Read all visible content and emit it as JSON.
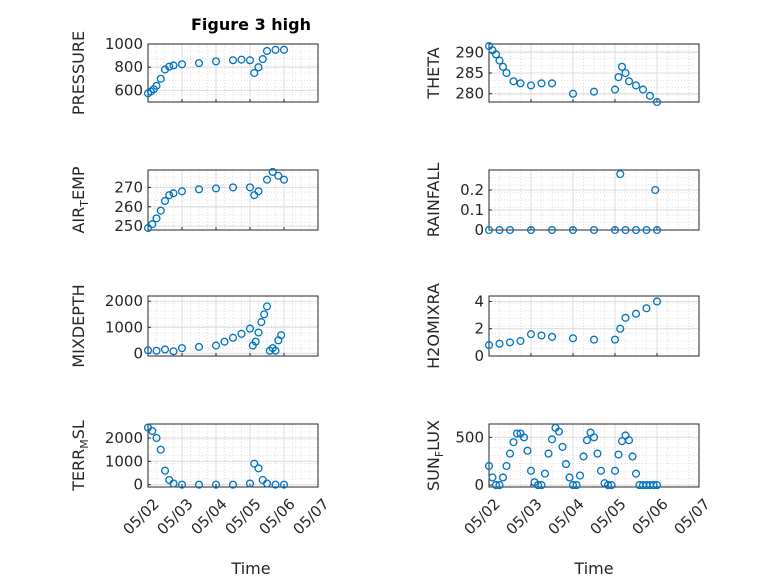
{
  "figure": {
    "title": "Figure 3 high",
    "xlabel": "Time",
    "date_ticks": [
      "05/02",
      "05/03",
      "05/04",
      "05/05",
      "05/06",
      "05/07"
    ],
    "marker_color": "#0072BD"
  },
  "chart_data": [
    {
      "type": "scatter",
      "title": "Figure 3 high",
      "ylabel": "PRESSURE",
      "ylim": [
        500,
        1000
      ],
      "yticks": [
        "600",
        "800",
        "1000"
      ],
      "x": [
        "05/02 00:00",
        "05/02 02:00",
        "05/02 04:00",
        "05/02 06:00",
        "05/02 09:00",
        "05/02 12:00",
        "05/02 15:00",
        "05/02 18:00",
        "05/03 00:00",
        "05/03 12:00",
        "05/04 00:00",
        "05/04 12:00",
        "05/04 18:00",
        "05/05 00:00",
        "05/05 03:00",
        "05/05 06:00",
        "05/05 09:00",
        "05/05 12:00",
        "05/05 18:00",
        "05/06 00:00"
      ],
      "y": [
        575,
        590,
        610,
        640,
        700,
        780,
        805,
        815,
        825,
        835,
        850,
        860,
        865,
        860,
        750,
        800,
        870,
        940,
        950,
        950
      ]
    },
    {
      "type": "scatter",
      "ylabel": "THETA",
      "ylim": [
        278,
        292
      ],
      "yticks": [
        "280",
        "285",
        "290"
      ],
      "x": [
        "05/02 00:00",
        "05/02 02:00",
        "05/02 04:00",
        "05/02 06:00",
        "05/02 08:00",
        "05/02 10:00",
        "05/02 14:00",
        "05/02 18:00",
        "05/03 00:00",
        "05/03 06:00",
        "05/03 12:00",
        "05/04 00:00",
        "05/04 12:00",
        "05/05 00:00",
        "05/05 02:00",
        "05/05 04:00",
        "05/05 06:00",
        "05/05 08:00",
        "05/05 12:00",
        "05/05 16:00",
        "05/05 20:00",
        "05/06 00:00"
      ],
      "y": [
        291.5,
        290.5,
        289.5,
        288,
        286.5,
        285,
        283,
        282.5,
        282,
        282.5,
        282.5,
        280,
        280.5,
        281,
        284,
        286.5,
        285,
        283,
        282,
        281,
        279.5,
        278
      ]
    },
    {
      "type": "scatter",
      "ylabel": "AIR_TEMP",
      "ylim": [
        248,
        279
      ],
      "yticks": [
        "250",
        "260",
        "270"
      ],
      "x": [
        "05/02 00:00",
        "05/02 03:00",
        "05/02 06:00",
        "05/02 09:00",
        "05/02 12:00",
        "05/02 15:00",
        "05/02 18:00",
        "05/03 00:00",
        "05/03 12:00",
        "05/04 00:00",
        "05/04 12:00",
        "05/05 00:00",
        "05/05 03:00",
        "05/05 06:00",
        "05/05 12:00",
        "05/05 16:00",
        "05/05 20:00",
        "05/06 00:00"
      ],
      "y": [
        249,
        251,
        254,
        258,
        263,
        266,
        267,
        268,
        269,
        269.5,
        270,
        270,
        266,
        268,
        274,
        278,
        276,
        274
      ]
    },
    {
      "type": "scatter",
      "ylabel": "RAINFALL",
      "ylim": [
        0,
        0.3
      ],
      "yticks": [
        "0",
        "0.1",
        "0.2"
      ],
      "x": [
        "05/02 00:00",
        "05/02 06:00",
        "05/02 12:00",
        "05/03 00:00",
        "05/03 12:00",
        "05/04 00:00",
        "05/04 12:00",
        "05/05 00:00",
        "05/05 03:00",
        "05/05 06:00",
        "05/05 12:00",
        "05/05 18:00",
        "05/05 23:00",
        "05/06 00:00"
      ],
      "y": [
        0,
        0,
        0,
        0,
        0,
        0,
        0,
        0,
        0.28,
        0,
        0,
        0,
        0.2,
        0
      ]
    },
    {
      "type": "scatter",
      "ylabel": "MIXDEPTH",
      "ylim": [
        -100,
        2200
      ],
      "yticks": [
        "0",
        "1000",
        "2000"
      ],
      "x": [
        "05/02 00:00",
        "05/02 06:00",
        "05/02 12:00",
        "05/02 18:00",
        "05/03 00:00",
        "05/03 12:00",
        "05/04 00:00",
        "05/04 06:00",
        "05/04 12:00",
        "05/04 18:00",
        "05/05 00:00",
        "05/05 02:00",
        "05/05 04:00",
        "05/05 06:00",
        "05/05 08:00",
        "05/05 10:00",
        "05/05 12:00",
        "05/05 14:00",
        "05/05 16:00",
        "05/05 18:00",
        "05/05 20:00",
        "05/05 22:00"
      ],
      "y": [
        120,
        100,
        150,
        80,
        200,
        250,
        300,
        450,
        600,
        750,
        950,
        300,
        450,
        800,
        1200,
        1500,
        1800,
        100,
        200,
        100,
        500,
        700
      ]
    },
    {
      "type": "scatter",
      "ylabel": "H2OMIXRA",
      "ylim": [
        0,
        4.4
      ],
      "yticks": [
        "0",
        "2",
        "4"
      ],
      "x": [
        "05/02 00:00",
        "05/02 06:00",
        "05/02 12:00",
        "05/02 18:00",
        "05/03 00:00",
        "05/03 06:00",
        "05/03 12:00",
        "05/04 00:00",
        "05/04 12:00",
        "05/05 00:00",
        "05/05 03:00",
        "05/05 06:00",
        "05/05 12:00",
        "05/05 18:00",
        "05/06 00:00"
      ],
      "y": [
        0.8,
        0.9,
        1.0,
        1.1,
        1.6,
        1.5,
        1.4,
        1.3,
        1.2,
        1.2,
        2.0,
        2.8,
        3.1,
        3.5,
        4.0
      ]
    },
    {
      "type": "scatter",
      "ylabel": "TERR_MSL",
      "ylim": [
        -100,
        2600
      ],
      "yticks": [
        "0",
        "1000",
        "2000"
      ],
      "x": [
        "05/02 00:00",
        "05/02 03:00",
        "05/02 06:00",
        "05/02 09:00",
        "05/02 12:00",
        "05/02 15:00",
        "05/02 18:00",
        "05/03 00:00",
        "05/03 12:00",
        "05/04 00:00",
        "05/04 12:00",
        "05/05 00:00",
        "05/05 03:00",
        "05/05 06:00",
        "05/05 09:00",
        "05/05 12:00",
        "05/05 18:00",
        "05/06 00:00"
      ],
      "y": [
        2450,
        2300,
        2000,
        1500,
        600,
        200,
        50,
        0,
        0,
        0,
        0,
        50,
        900,
        700,
        200,
        50,
        0,
        0
      ]
    },
    {
      "type": "scatter",
      "ylabel": "SUN_FLUX",
      "ylim": [
        -20,
        640
      ],
      "yticks": [
        "0",
        "500"
      ],
      "x": [
        "05/02 00:00",
        "05/02 02:00",
        "05/02 04:00",
        "05/02 06:00",
        "05/02 08:00",
        "05/02 10:00",
        "05/02 12:00",
        "05/02 14:00",
        "05/02 16:00",
        "05/02 18:00",
        "05/02 20:00",
        "05/02 22:00",
        "05/03 00:00",
        "05/03 02:00",
        "05/03 04:00",
        "05/03 06:00",
        "05/03 08:00",
        "05/03 10:00",
        "05/03 12:00",
        "05/03 14:00",
        "05/03 16:00",
        "05/03 18:00",
        "05/03 20:00",
        "05/03 22:00",
        "05/04 00:00",
        "05/04 02:00",
        "05/04 04:00",
        "05/04 06:00",
        "05/04 08:00",
        "05/04 10:00",
        "05/04 12:00",
        "05/04 14:00",
        "05/04 16:00",
        "05/04 18:00",
        "05/04 20:00",
        "05/04 22:00",
        "05/05 00:00",
        "05/05 02:00",
        "05/05 04:00",
        "05/05 06:00",
        "05/05 08:00",
        "05/05 10:00",
        "05/05 12:00",
        "05/05 14:00",
        "05/05 16:00",
        "05/05 18:00",
        "05/05 20:00",
        "05/05 22:00",
        "05/06 00:00"
      ],
      "y": [
        200,
        80,
        0,
        0,
        80,
        200,
        330,
        450,
        540,
        540,
        500,
        360,
        150,
        30,
        0,
        0,
        120,
        330,
        480,
        600,
        560,
        400,
        220,
        80,
        0,
        0,
        100,
        300,
        470,
        550,
        500,
        330,
        150,
        20,
        0,
        0,
        150,
        320,
        460,
        520,
        470,
        300,
        120,
        0,
        0,
        0,
        0,
        0,
        0
      ]
    }
  ]
}
